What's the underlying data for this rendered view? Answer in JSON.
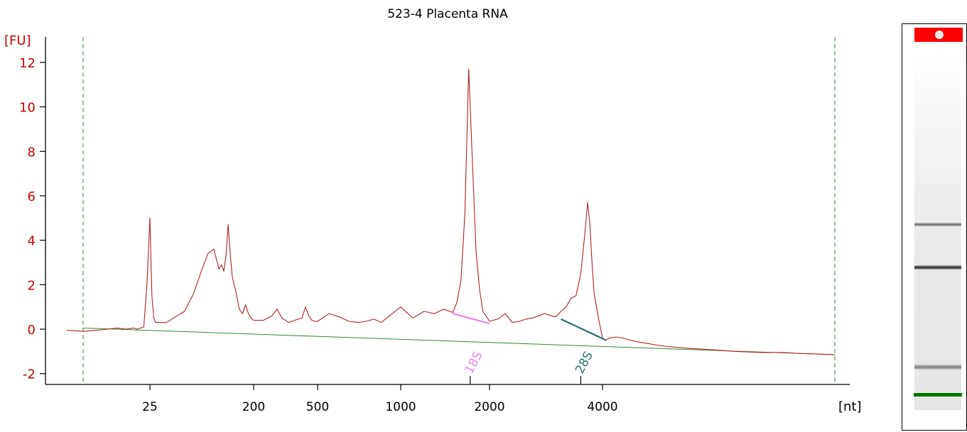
{
  "chart_data": {
    "type": "line",
    "title": "523-4 Placenta RNA",
    "ylabel": "[FU]",
    "xlabel": "[nt]",
    "ylim": [
      -2.4,
      13.2
    ],
    "yticks": [
      -2,
      0,
      2,
      4,
      6,
      8,
      10,
      12
    ],
    "xtick_labels": [
      "25",
      "200",
      "500",
      "1000",
      "2000",
      "4000"
    ],
    "x_scale": "log (electropherogram size axis)",
    "grid": false,
    "series": [
      {
        "name": "",
        "color": "#b22222",
        "x_unit": "nt",
        "x": [
          8,
          10,
          12,
          14,
          16,
          18,
          20,
          21,
          22,
          23,
          24,
          25,
          26,
          27,
          28,
          30,
          35,
          40,
          50,
          60,
          70,
          80,
          90,
          100,
          105,
          110,
          115,
          120,
          125,
          130,
          135,
          140,
          150,
          160,
          170,
          180,
          190,
          200,
          230,
          260,
          280,
          300,
          330,
          360,
          400,
          420,
          440,
          460,
          480,
          500,
          550,
          600,
          650,
          700,
          750,
          800,
          850,
          900,
          1000,
          1100,
          1200,
          1300,
          1400,
          1500,
          1550,
          1600,
          1650,
          1700,
          1750,
          1800,
          1850,
          1900,
          2000,
          2100,
          2200,
          2300,
          2400,
          2500,
          2600,
          2800,
          3000,
          3100,
          3200,
          3300,
          3400,
          3500,
          3600,
          3650,
          3700,
          3750,
          3800,
          3900,
          4000,
          4100,
          4200,
          4400,
          4600,
          5000,
          5500,
          6000,
          7000,
          8000,
          9000,
          10000,
          12000,
          14000,
          16000,
          18000,
          20000
        ],
        "y": [
          -0.05,
          -0.1,
          -0.05,
          0.0,
          0.05,
          0.0,
          0.05,
          0.0,
          0.05,
          0.1,
          2.0,
          5.0,
          1.5,
          0.5,
          0.3,
          0.3,
          0.3,
          0.5,
          0.8,
          1.6,
          2.6,
          3.4,
          3.6,
          2.7,
          2.9,
          2.6,
          3.3,
          4.7,
          3.4,
          2.4,
          2.0,
          1.7,
          0.9,
          0.7,
          1.1,
          0.7,
          0.5,
          0.4,
          0.4,
          0.6,
          0.9,
          0.5,
          0.3,
          0.4,
          0.5,
          1.0,
          0.6,
          0.4,
          0.35,
          0.35,
          0.7,
          0.55,
          0.35,
          0.3,
          0.35,
          0.45,
          0.3,
          0.55,
          1.0,
          0.5,
          0.8,
          0.7,
          0.9,
          0.75,
          1.2,
          2.2,
          5.2,
          11.7,
          7.5,
          3.5,
          1.8,
          0.8,
          0.35,
          0.45,
          0.7,
          0.3,
          0.35,
          0.45,
          0.5,
          0.7,
          0.55,
          0.8,
          1.0,
          1.4,
          1.5,
          2.5,
          4.5,
          5.7,
          4.8,
          3.0,
          1.6,
          0.5,
          -0.4,
          -0.5,
          -0.4,
          -0.35,
          -0.4,
          -0.55,
          -0.65,
          -0.75,
          -0.85,
          -0.9,
          -0.95,
          -1.0,
          -1.05,
          -1.05,
          -1.1,
          -1.12,
          -1.15
        ]
      }
    ],
    "baseline": {
      "color": "#2e8b2e",
      "x": [
        10,
        20000
      ],
      "y": [
        0.05,
        -1.15
      ]
    },
    "markers": [
      {
        "label": "18S",
        "x": 1720,
        "color": "#ee82ee",
        "segment_x": [
          1500,
          2000
        ],
        "segment_y": [
          0.7,
          0.25
        ]
      },
      {
        "label": "28S",
        "x": 3500,
        "color": "#2f6f6f",
        "segment_x": [
          3100,
          4100
        ],
        "segment_y": [
          0.45,
          -0.5
        ]
      }
    ],
    "range_lines": {
      "color": "#2e8b2e",
      "x": [
        10,
        20000
      ]
    }
  },
  "gel": {
    "cap_color": "#ff0000",
    "band_color": "#007700",
    "bands": [
      {
        "intensity": 0.55
      },
      {
        "intensity": 0.85
      },
      {
        "intensity": 0.45
      }
    ]
  }
}
